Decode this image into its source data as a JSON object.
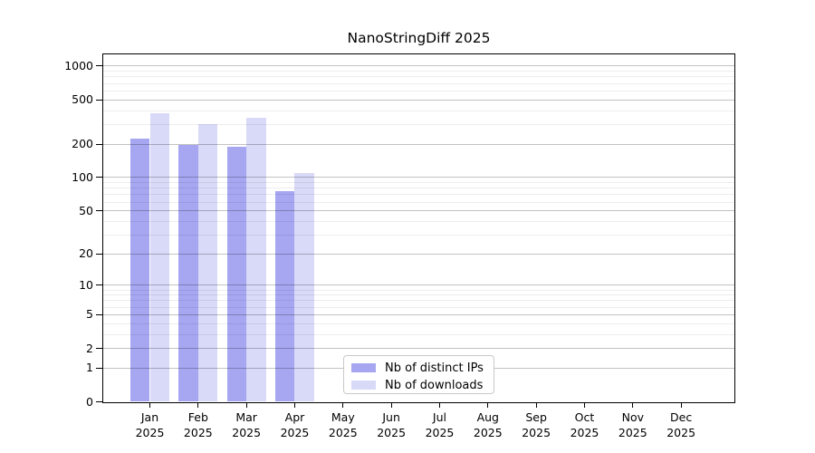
{
  "chart_data": {
    "type": "bar",
    "title": "NanoStringDiff 2025",
    "categories": [
      "Jan 2025",
      "Feb 2025",
      "Mar 2025",
      "Apr 2025",
      "May 2025",
      "Jun 2025",
      "Jul 2025",
      "Aug 2025",
      "Sep 2025",
      "Oct 2025",
      "Nov 2025",
      "Dec 2025"
    ],
    "series": [
      {
        "name": "Nb of distinct IPs",
        "color": "#a6a6f1",
        "values": [
          226,
          197,
          191,
          75,
          0,
          0,
          0,
          0,
          0,
          0,
          0,
          0
        ]
      },
      {
        "name": "Nb of downloads",
        "color": "#d9d9f8",
        "values": [
          377,
          305,
          344,
          110,
          0,
          0,
          0,
          0,
          0,
          0,
          0,
          0
        ]
      }
    ],
    "xlabel": "",
    "ylabel": "",
    "yscale": "log10(value+1)",
    "ytick_labels": [
      0,
      1,
      2,
      5,
      10,
      20,
      50,
      100,
      200,
      500,
      1000
    ],
    "ylim": [
      0,
      1200
    ],
    "grid": "horizontal, minor lines each 1-2-...-9 step per decade, drawn over bars",
    "legend_position": "bottom-center"
  }
}
